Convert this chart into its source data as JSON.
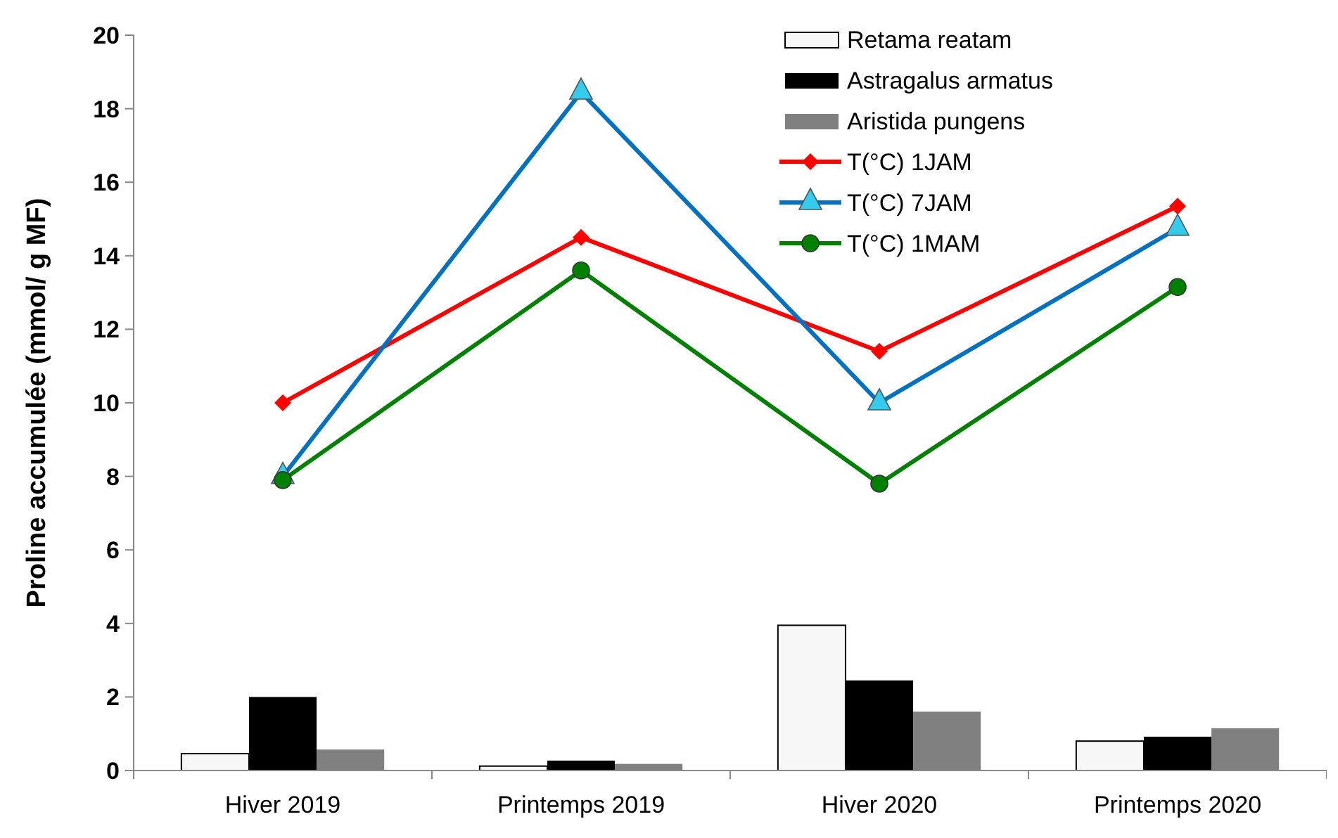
{
  "chart_data": {
    "type": "bar",
    "ylabel": "Proline accumulée (mmol/ g MF)",
    "categories": [
      "Hiver 2019",
      "Printemps 2019",
      "Hiver 2020",
      "Printemps 2020"
    ],
    "ylim": [
      0,
      20
    ],
    "yticks": [
      0,
      2,
      4,
      6,
      8,
      10,
      12,
      14,
      16,
      18,
      20
    ],
    "grid": false,
    "legend": "top right",
    "series": [
      {
        "name": "Retama reatam",
        "color": "#f7f7f7",
        "values": [
          0.46,
          0.12,
          3.95,
          0.8
        ]
      },
      {
        "name": "Astragalus armatus",
        "color": "#000000",
        "values": [
          2.0,
          0.27,
          2.45,
          0.92
        ]
      },
      {
        "name": "Aristida pungens",
        "color": "#808080",
        "values": [
          0.57,
          0.18,
          1.6,
          1.15
        ]
      },
      {
        "name": "T(°C) 1JAM",
        "type": "line",
        "color": "#ff0000",
        "marker": "diamond",
        "values": [
          10,
          14.5,
          11.4,
          15.35
        ]
      },
      {
        "name": "T(°C) 7JAM",
        "type": "line",
        "color": "#0070c0",
        "marker": "triangle",
        "values": [
          8,
          18.45,
          10,
          14.75
        ]
      },
      {
        "name": "T(°C) 1MAM",
        "type": "line",
        "color": "#008000",
        "marker": "circle",
        "values": [
          7.9,
          13.6,
          7.8,
          13.15
        ]
      }
    ]
  }
}
